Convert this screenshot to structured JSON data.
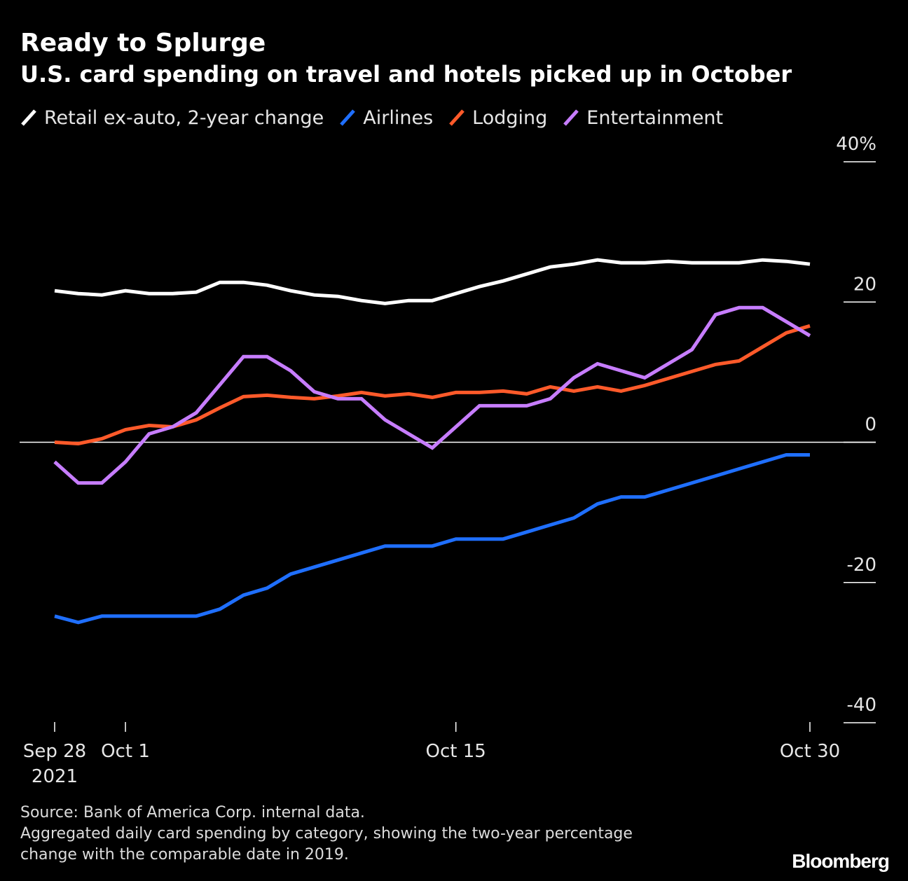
{
  "header": {
    "title": "Ready to Splurge",
    "subtitle": "U.S. card spending on travel and hotels picked up in October"
  },
  "legend": [
    {
      "label": "Retail ex-auto, 2-year change",
      "color": "#ffffff"
    },
    {
      "label": "Airlines",
      "color": "#1f6fff"
    },
    {
      "label": "Lodging",
      "color": "#ff5a2a"
    },
    {
      "label": "Entertainment",
      "color": "#c77dff"
    }
  ],
  "footer": {
    "source": "Source: Bank of America Corp. internal data.",
    "note_line1": "Aggregated daily card spending by category, showing the two-year percentage",
    "note_line2": "change with the comparable date in 2019."
  },
  "brand": "Bloomberg",
  "chart_data": {
    "type": "line",
    "title": "Ready to Splurge",
    "subtitle": "U.S. card spending on travel and hotels picked up in October",
    "xlabel": "",
    "ylabel": "",
    "ylim": [
      -40,
      40
    ],
    "grid": false,
    "legend_position": "top",
    "x_start_day": 28,
    "x_end_day": 60,
    "x": [
      "Sep 28",
      "Sep 29",
      "Sep 30",
      "Oct 1",
      "Oct 2",
      "Oct 3",
      "Oct 4",
      "Oct 5",
      "Oct 6",
      "Oct 7",
      "Oct 8",
      "Oct 9",
      "Oct 10",
      "Oct 11",
      "Oct 12",
      "Oct 13",
      "Oct 14",
      "Oct 15",
      "Oct 16",
      "Oct 17",
      "Oct 18",
      "Oct 19",
      "Oct 20",
      "Oct 21",
      "Oct 22",
      "Oct 23",
      "Oct 24",
      "Oct 25",
      "Oct 26",
      "Oct 27",
      "Oct 28",
      "Oct 29",
      "Oct 30"
    ],
    "x_ticks": [
      {
        "day": 28,
        "label": "Sep 28",
        "sublabel": "2021"
      },
      {
        "day": 31,
        "label": "Oct 1",
        "sublabel": ""
      },
      {
        "day": 45,
        "label": "Oct 15",
        "sublabel": ""
      },
      {
        "day": 60,
        "label": "Oct 30",
        "sublabel": ""
      }
    ],
    "y_ticks": [
      {
        "value": 40,
        "label": "40%"
      },
      {
        "value": 20,
        "label": "20"
      },
      {
        "value": 0,
        "label": "0"
      },
      {
        "value": -20,
        "label": "-20"
      },
      {
        "value": -40,
        "label": "-40"
      }
    ],
    "series": [
      {
        "name": "Retail ex-auto, 2-year change",
        "color": "#ffffff",
        "values": [
          21.6,
          21.2,
          21.0,
          21.6,
          21.2,
          21.2,
          21.4,
          22.8,
          22.8,
          22.4,
          21.6,
          21.0,
          20.8,
          20.2,
          19.8,
          20.2,
          20.2,
          21.2,
          22.2,
          23.0,
          24.0,
          25.0,
          25.4,
          26.0,
          25.6,
          25.6,
          25.8,
          25.6,
          25.6,
          25.6,
          26.0,
          25.8,
          25.4
        ]
      },
      {
        "name": "Airlines",
        "color": "#1f6fff",
        "values": [
          -24.8,
          -25.7,
          -24.8,
          -24.8,
          -24.8,
          -24.8,
          -24.8,
          -23.8,
          -21.8,
          -20.8,
          -18.8,
          -17.8,
          -16.8,
          -15.8,
          -14.8,
          -14.8,
          -14.8,
          -13.8,
          -13.8,
          -13.8,
          -12.8,
          -11.8,
          -10.8,
          -8.8,
          -7.8,
          -7.8,
          -6.8,
          -5.8,
          -4.8,
          -3.8,
          -2.8,
          -1.8,
          -1.8
        ]
      },
      {
        "name": "Lodging",
        "color": "#ff5a2a",
        "values": [
          0.0,
          -0.2,
          0.5,
          1.8,
          2.4,
          2.2,
          3.2,
          4.9,
          6.5,
          6.7,
          6.4,
          6.2,
          6.6,
          7.1,
          6.6,
          6.9,
          6.4,
          7.1,
          7.1,
          7.3,
          6.9,
          7.9,
          7.3,
          7.9,
          7.3,
          8.1,
          9.1,
          10.1,
          11.1,
          11.6,
          13.6,
          15.6,
          16.6
        ]
      },
      {
        "name": "Entertainment",
        "color": "#c77dff",
        "values": [
          -2.8,
          -5.8,
          -5.8,
          -2.8,
          1.2,
          2.2,
          4.2,
          8.2,
          12.2,
          12.2,
          10.2,
          7.2,
          6.2,
          6.2,
          3.2,
          1.2,
          -0.8,
          2.2,
          5.2,
          5.2,
          5.2,
          6.2,
          9.2,
          11.2,
          10.2,
          9.2,
          11.2,
          13.2,
          18.2,
          19.2,
          19.2,
          17.2,
          15.2
        ]
      }
    ]
  }
}
